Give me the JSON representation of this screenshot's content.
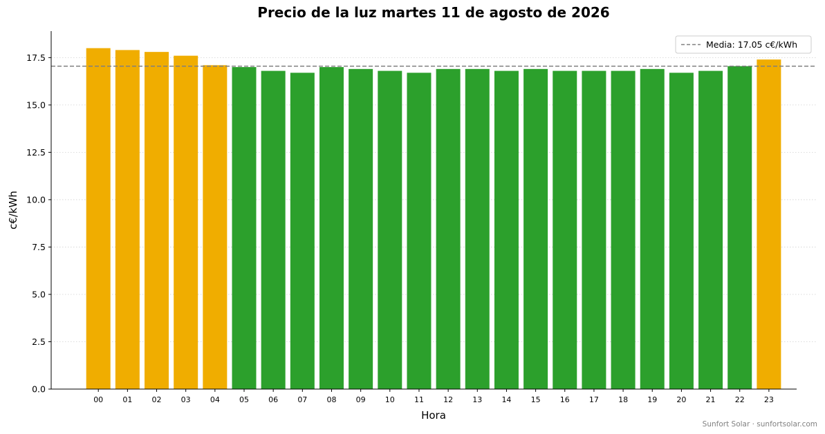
{
  "chart_data": {
    "type": "bar",
    "title": "Precio de la luz martes 11 de agosto de 2026",
    "xlabel": "Hora",
    "ylabel": "c€/kWh",
    "ylim": [
      0,
      18.9
    ],
    "yticks": [
      "0.0",
      "2.5",
      "5.0",
      "7.5",
      "10.0",
      "12.5",
      "15.0",
      "17.5"
    ],
    "grid": "horizontal dotted",
    "categories": [
      "00",
      "01",
      "02",
      "03",
      "04",
      "05",
      "06",
      "07",
      "08",
      "09",
      "10",
      "11",
      "12",
      "13",
      "14",
      "15",
      "16",
      "17",
      "18",
      "19",
      "20",
      "21",
      "22",
      "23"
    ],
    "values": [
      18.0,
      17.9,
      17.8,
      17.6,
      17.1,
      17.0,
      16.8,
      16.7,
      17.0,
      16.9,
      16.8,
      16.7,
      16.9,
      16.9,
      16.8,
      16.9,
      16.8,
      16.8,
      16.8,
      16.9,
      16.7,
      16.8,
      17.05,
      17.4
    ],
    "bar_colors": [
      "#f0ad00",
      "#f0ad00",
      "#f0ad00",
      "#f0ad00",
      "#f0ad00",
      "#2ca02c",
      "#2ca02c",
      "#2ca02c",
      "#2ca02c",
      "#2ca02c",
      "#2ca02c",
      "#2ca02c",
      "#2ca02c",
      "#2ca02c",
      "#2ca02c",
      "#2ca02c",
      "#2ca02c",
      "#2ca02c",
      "#2ca02c",
      "#2ca02c",
      "#2ca02c",
      "#2ca02c",
      "#2ca02c",
      "#f0ad00"
    ],
    "mean_line": {
      "value": 17.05,
      "color": "#808080",
      "style": "dashed"
    },
    "legend": {
      "entries": [
        "Media: 17.05 c€/kWh"
      ],
      "placement": "top-right"
    }
  },
  "footer": {
    "credit": "Sunfort Solar · sunfortsolar.com"
  }
}
